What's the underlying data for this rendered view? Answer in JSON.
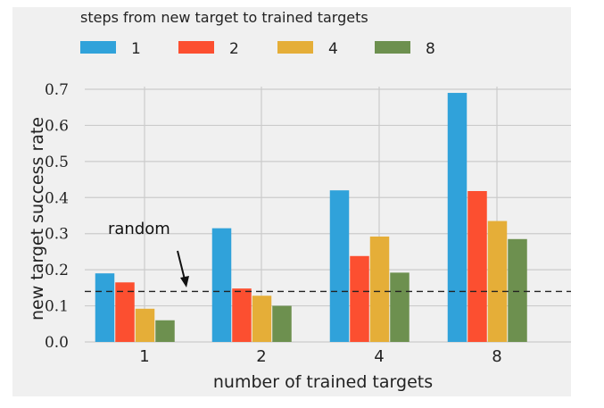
{
  "chart_data": {
    "type": "bar",
    "legend_title": "steps from new target to trained targets",
    "legend_placement": "top",
    "categories": [
      "1",
      "2",
      "4",
      "8"
    ],
    "series": [
      {
        "name": "1",
        "color": "#30a2da",
        "values": [
          0.19,
          0.315,
          0.42,
          0.69
        ]
      },
      {
        "name": "2",
        "color": "#fc4f30",
        "values": [
          0.165,
          0.148,
          0.238,
          0.418
        ]
      },
      {
        "name": "4",
        "color": "#e5ae38",
        "values": [
          0.092,
          0.128,
          0.292,
          0.335
        ]
      },
      {
        "name": "8",
        "color": "#6d904f",
        "values": [
          0.06,
          0.1,
          0.192,
          0.285
        ]
      }
    ],
    "xlabel": "number of trained targets",
    "ylabel": "new target success rate",
    "ylim": [
      0,
      0.7
    ],
    "yticks": [
      "0.0",
      "0.1",
      "0.2",
      "0.3",
      "0.4",
      "0.5",
      "0.6",
      "0.7"
    ],
    "grid": true,
    "reference_line": {
      "value": 0.14,
      "style": "dashed",
      "label": "random"
    }
  }
}
